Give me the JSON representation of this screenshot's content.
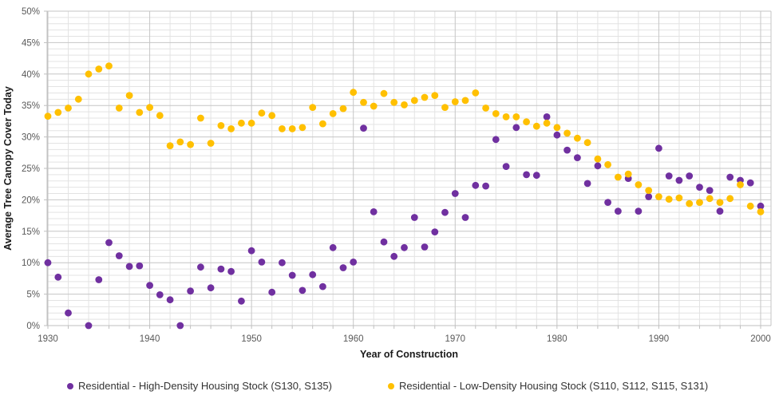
{
  "figure": {
    "background": "#ffffff",
    "tick_label_color": "#595959",
    "minor_grid_color": "#e3e3e3",
    "major_grid_color": "#c6c6c6",
    "axis_line_color": "#bfbfbf"
  },
  "chart_data": {
    "type": "scatter",
    "title": "",
    "xlabel": "Year of Construction",
    "ylabel": "Average Tree Canopy Cover Today",
    "xlim": [
      1930,
      2001
    ],
    "ylim": [
      0,
      50
    ],
    "x_major_ticks": [
      1930,
      1940,
      1950,
      1960,
      1970,
      1980,
      1990,
      2000
    ],
    "x_minor_unit": 2,
    "y_major_unit": 5,
    "y_minor_unit": 1,
    "y_tick_labels": [
      "0%",
      "5%",
      "10%",
      "15%",
      "20%",
      "25%",
      "30%",
      "35%",
      "40%",
      "45%",
      "50%"
    ],
    "grid": true,
    "legend_position": "bottom",
    "series": [
      {
        "name": "Residential - High-Density Housing Stock (S130, S135)",
        "color": "#7030A0",
        "points": [
          [
            1930,
            10.0
          ],
          [
            1931,
            7.7
          ],
          [
            1932,
            2.0
          ],
          [
            1934,
            0.0
          ],
          [
            1935,
            7.3
          ],
          [
            1936,
            13.2
          ],
          [
            1937,
            11.1
          ],
          [
            1938,
            9.4
          ],
          [
            1939,
            9.5
          ],
          [
            1940,
            6.4
          ],
          [
            1941,
            4.9
          ],
          [
            1942,
            4.1
          ],
          [
            1943,
            0.0
          ],
          [
            1944,
            5.5
          ],
          [
            1945,
            9.3
          ],
          [
            1946,
            6.0
          ],
          [
            1947,
            9.0
          ],
          [
            1948,
            8.6
          ],
          [
            1949,
            3.9
          ],
          [
            1950,
            11.9
          ],
          [
            1951,
            10.1
          ],
          [
            1952,
            5.3
          ],
          [
            1953,
            10.0
          ],
          [
            1954,
            8.0
          ],
          [
            1955,
            5.6
          ],
          [
            1956,
            8.1
          ],
          [
            1957,
            6.2
          ],
          [
            1958,
            12.4
          ],
          [
            1959,
            9.2
          ],
          [
            1960,
            10.1
          ],
          [
            1961,
            31.4
          ],
          [
            1962,
            18.1
          ],
          [
            1963,
            13.3
          ],
          [
            1964,
            11.0
          ],
          [
            1965,
            12.4
          ],
          [
            1966,
            17.2
          ],
          [
            1967,
            12.5
          ],
          [
            1968,
            14.9
          ],
          [
            1969,
            18.0
          ],
          [
            1970,
            21.0
          ],
          [
            1971,
            17.2
          ],
          [
            1972,
            22.3
          ],
          [
            1973,
            22.2
          ],
          [
            1974,
            29.6
          ],
          [
            1975,
            25.3
          ],
          [
            1976,
            31.5
          ],
          [
            1977,
            24.0
          ],
          [
            1978,
            23.9
          ],
          [
            1979,
            33.2
          ],
          [
            1980,
            30.3
          ],
          [
            1981,
            27.9
          ],
          [
            1982,
            26.7
          ],
          [
            1983,
            22.6
          ],
          [
            1984,
            25.4
          ],
          [
            1985,
            19.6
          ],
          [
            1986,
            18.2
          ],
          [
            1987,
            23.4
          ],
          [
            1988,
            18.2
          ],
          [
            1989,
            20.5
          ],
          [
            1990,
            28.2
          ],
          [
            1991,
            23.8
          ],
          [
            1992,
            23.1
          ],
          [
            1993,
            23.8
          ],
          [
            1994,
            22.0
          ],
          [
            1995,
            21.5
          ],
          [
            1996,
            18.2
          ],
          [
            1997,
            23.6
          ],
          [
            1998,
            23.1
          ],
          [
            1999,
            22.7
          ],
          [
            2000,
            19.0
          ]
        ]
      },
      {
        "name": "Residential - Low-Density Housing Stock (S110, S112, S115, S131)",
        "color": "#FFC000",
        "points": [
          [
            1930,
            33.3
          ],
          [
            1931,
            33.9
          ],
          [
            1932,
            34.6
          ],
          [
            1933,
            36.0
          ],
          [
            1934,
            40.0
          ],
          [
            1935,
            40.8
          ],
          [
            1936,
            41.3
          ],
          [
            1937,
            34.6
          ],
          [
            1938,
            36.6
          ],
          [
            1939,
            33.9
          ],
          [
            1940,
            34.7
          ],
          [
            1941,
            33.4
          ],
          [
            1942,
            28.6
          ],
          [
            1943,
            29.2
          ],
          [
            1944,
            28.8
          ],
          [
            1945,
            33.0
          ],
          [
            1946,
            29.0
          ],
          [
            1947,
            31.8
          ],
          [
            1948,
            31.3
          ],
          [
            1949,
            32.2
          ],
          [
            1950,
            32.2
          ],
          [
            1951,
            33.8
          ],
          [
            1952,
            33.4
          ],
          [
            1953,
            31.3
          ],
          [
            1954,
            31.3
          ],
          [
            1955,
            31.5
          ],
          [
            1956,
            34.7
          ],
          [
            1957,
            32.1
          ],
          [
            1958,
            33.7
          ],
          [
            1959,
            34.5
          ],
          [
            1960,
            37.1
          ],
          [
            1961,
            35.5
          ],
          [
            1962,
            34.9
          ],
          [
            1963,
            36.9
          ],
          [
            1964,
            35.5
          ],
          [
            1965,
            35.1
          ],
          [
            1966,
            35.8
          ],
          [
            1967,
            36.3
          ],
          [
            1968,
            36.6
          ],
          [
            1969,
            34.7
          ],
          [
            1970,
            35.6
          ],
          [
            1971,
            35.8
          ],
          [
            1972,
            37.0
          ],
          [
            1973,
            34.6
          ],
          [
            1974,
            33.7
          ],
          [
            1975,
            33.2
          ],
          [
            1976,
            33.2
          ],
          [
            1977,
            32.4
          ],
          [
            1978,
            31.7
          ],
          [
            1979,
            32.2
          ],
          [
            1980,
            31.5
          ],
          [
            1981,
            30.6
          ],
          [
            1982,
            29.8
          ],
          [
            1983,
            29.1
          ],
          [
            1984,
            26.5
          ],
          [
            1985,
            25.6
          ],
          [
            1986,
            23.6
          ],
          [
            1987,
            24.1
          ],
          [
            1988,
            22.4
          ],
          [
            1989,
            21.5
          ],
          [
            1990,
            20.5
          ],
          [
            1991,
            20.1
          ],
          [
            1992,
            20.3
          ],
          [
            1993,
            19.4
          ],
          [
            1994,
            19.6
          ],
          [
            1995,
            20.2
          ],
          [
            1996,
            19.6
          ],
          [
            1997,
            20.2
          ],
          [
            1998,
            22.4
          ],
          [
            1999,
            19.0
          ],
          [
            2000,
            18.1
          ]
        ]
      }
    ]
  }
}
